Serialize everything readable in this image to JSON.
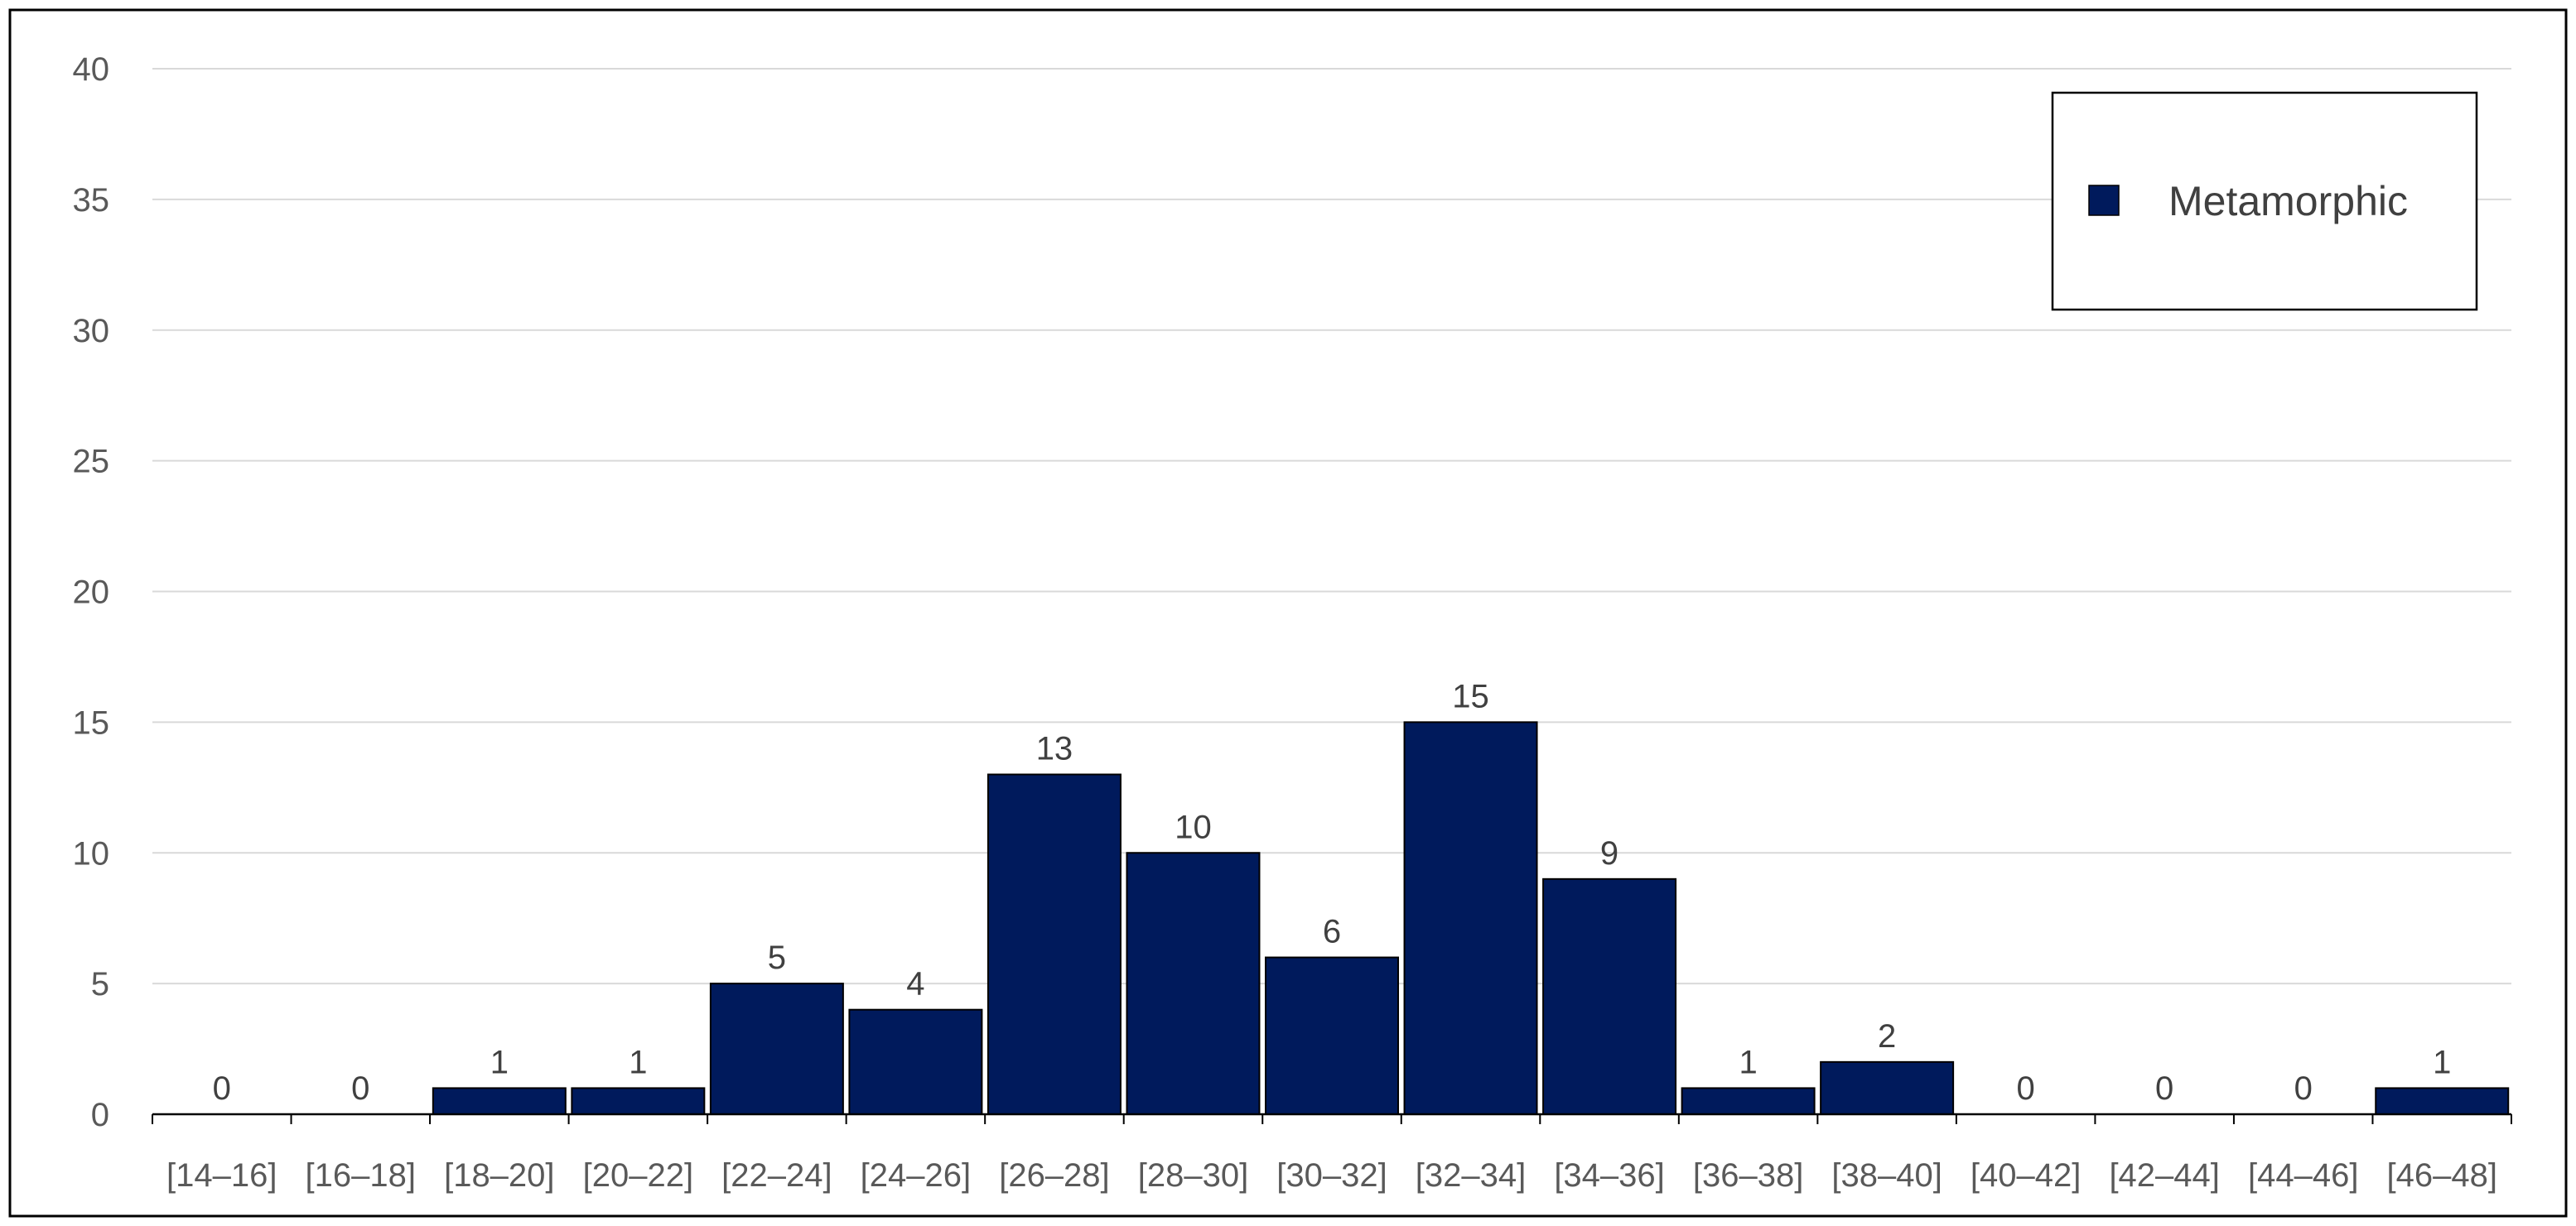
{
  "chart_data": {
    "type": "bar",
    "categories": [
      "[14–16]",
      "[16–18]",
      "[18–20]",
      "[20–22]",
      "[22–24]",
      "[24–26]",
      "[26–28]",
      "[28–30]",
      "[30–32]",
      "[32–34]",
      "[34–36]",
      "[36–38]",
      "[38–40]",
      "[40–42]",
      "[42–44]",
      "[44–46]",
      "[46–48]"
    ],
    "series": [
      {
        "name": "Metamorphic",
        "values": [
          0,
          0,
          1,
          1,
          5,
          4,
          13,
          10,
          6,
          15,
          9,
          1,
          2,
          0,
          0,
          0,
          1
        ]
      }
    ],
    "ylim": [
      0,
      40
    ],
    "yticks": [
      0,
      5,
      10,
      15,
      20,
      25,
      30,
      35,
      40
    ],
    "grid": true,
    "legend_position": "top-right",
    "bar_color": "#001a5c"
  }
}
